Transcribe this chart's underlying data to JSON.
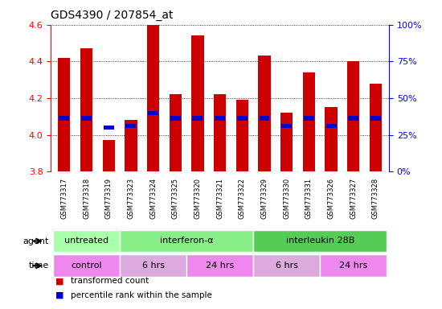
{
  "title": "GDS4390 / 207854_at",
  "samples": [
    "GSM773317",
    "GSM773318",
    "GSM773319",
    "GSM773323",
    "GSM773324",
    "GSM773325",
    "GSM773320",
    "GSM773321",
    "GSM773322",
    "GSM773329",
    "GSM773330",
    "GSM773331",
    "GSM773326",
    "GSM773327",
    "GSM773328"
  ],
  "transformed_count": [
    4.42,
    4.47,
    3.97,
    4.08,
    4.6,
    4.22,
    4.54,
    4.22,
    4.19,
    4.43,
    4.12,
    4.34,
    4.15,
    4.4,
    4.28
  ],
  "percentile_value": [
    4.09,
    4.09,
    4.04,
    4.05,
    4.12,
    4.09,
    4.09,
    4.09,
    4.09,
    4.09,
    4.05,
    4.09,
    4.05,
    4.09,
    4.09
  ],
  "bar_color": "#cc0000",
  "blue_color": "#0000cc",
  "ylim": [
    3.8,
    4.6
  ],
  "yticks": [
    3.8,
    4.0,
    4.2,
    4.4,
    4.6
  ],
  "y2ticks": [
    0,
    25,
    50,
    75,
    100
  ],
  "agent_groups": [
    {
      "label": "untreated",
      "start": 0,
      "end": 2,
      "color": "#aaffaa"
    },
    {
      "label": "interferon-α",
      "start": 3,
      "end": 8,
      "color": "#88ee88"
    },
    {
      "label": "interleukin 28B",
      "start": 9,
      "end": 14,
      "color": "#55cc55"
    }
  ],
  "time_groups": [
    {
      "label": "control",
      "start": 0,
      "end": 2,
      "color": "#ee88ee"
    },
    {
      "label": "6 hrs",
      "start": 3,
      "end": 5,
      "color": "#ddaadd"
    },
    {
      "label": "24 hrs",
      "start": 6,
      "end": 8,
      "color": "#ee88ee"
    },
    {
      "label": "6 hrs",
      "start": 9,
      "end": 11,
      "color": "#ddaadd"
    },
    {
      "label": "24 hrs",
      "start": 12,
      "end": 14,
      "color": "#ee88ee"
    }
  ],
  "legend_items": [
    {
      "color": "#cc0000",
      "label": "transformed count"
    },
    {
      "color": "#0000cc",
      "label": "percentile rank within the sample"
    }
  ]
}
